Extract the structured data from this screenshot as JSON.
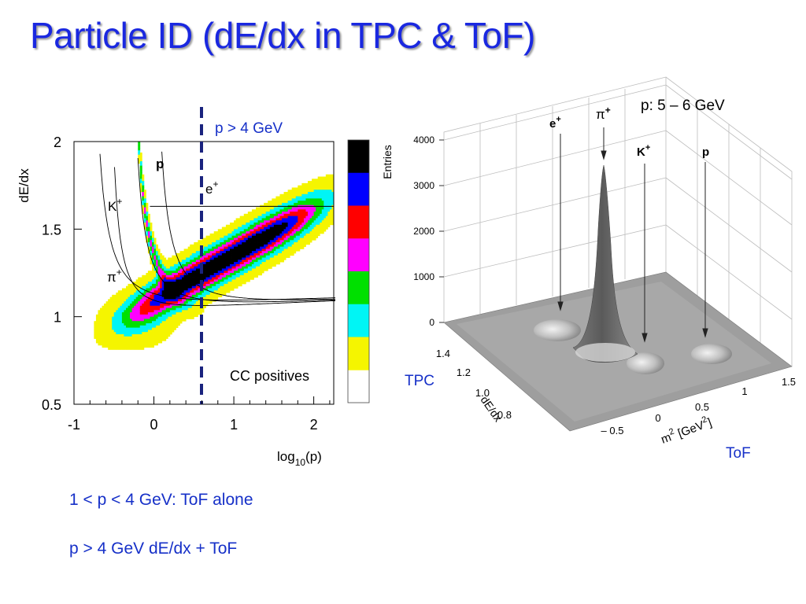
{
  "slide": {
    "title": "Particle ID (dE/dx in TPC & ToF)",
    "notes": [
      "1 < p < 4 GeV: ToF alone",
      "p > 4 GeV dE/dx + ToF"
    ]
  },
  "colors": {
    "title": "#1a28e0",
    "notes": "#1630c8",
    "cut_line": "#1a237e",
    "palette": [
      "#f5f500",
      "#00f5f5",
      "#00e000",
      "#ff00ff",
      "#ff0000",
      "#0000ff",
      "#000000"
    ]
  },
  "chart_data": [
    {
      "type": "heatmap",
      "xlabel": "log",
      "xlabel_sub": "10",
      "xlabel_tail": "(p)",
      "ylabel": "dE/dx",
      "xlim": [
        -1,
        2.25
      ],
      "ylim": [
        0.5,
        2
      ],
      "x_ticks": [
        "-1",
        "0",
        "1",
        "2"
      ],
      "y_ticks": [
        "2",
        "1.5",
        "1",
        "0.5"
      ],
      "cut_label": "p > 4 GeV",
      "cut_log10p": 0.58,
      "annotation": "CC positives",
      "species_labels": [
        {
          "name": "p",
          "sup": ""
        },
        {
          "name": "e",
          "sup": "+"
        },
        {
          "name": "K",
          "sup": "+"
        },
        {
          "name": "π",
          "sup": "+"
        }
      ],
      "color_levels": 7,
      "regions": [
        {
          "name": "pion-band",
          "x1": -0.35,
          "y1": 1.0,
          "x2": 1.8,
          "y2": 1.55
        },
        {
          "name": "proton-band",
          "x1": -0.1,
          "y1": 2.0,
          "x2": 0.15,
          "y2": 1.25
        }
      ]
    },
    {
      "type": "surface",
      "subtitle": "p: 5 – 6 GeV",
      "zlabel": "Entries",
      "z_ticks": [
        "4000",
        "3000",
        "2000",
        "1000",
        "0"
      ],
      "xlabel": "m",
      "xlabel_sup": "2",
      "xlabel_unit": " [GeV",
      "xlabel_unit_sup": "2",
      "xlabel_tail": "]",
      "ylabel": "dE/dx",
      "x_ticks": [
        "– 0.5",
        "0",
        "0.5",
        "1",
        "1.5"
      ],
      "y_ticks": [
        "1.4",
        "1.2",
        "1.0",
        "0.8"
      ],
      "axis_labels": {
        "tpc": "TPC",
        "tof": "ToF"
      },
      "peaks": [
        {
          "name": "e",
          "sup": "+",
          "entries": 250
        },
        {
          "name": "π",
          "sup": "+",
          "entries": 3450
        },
        {
          "name": "K",
          "sup": "+",
          "entries": 320
        },
        {
          "name": "p",
          "sup": "",
          "entries": 300
        }
      ]
    }
  ]
}
